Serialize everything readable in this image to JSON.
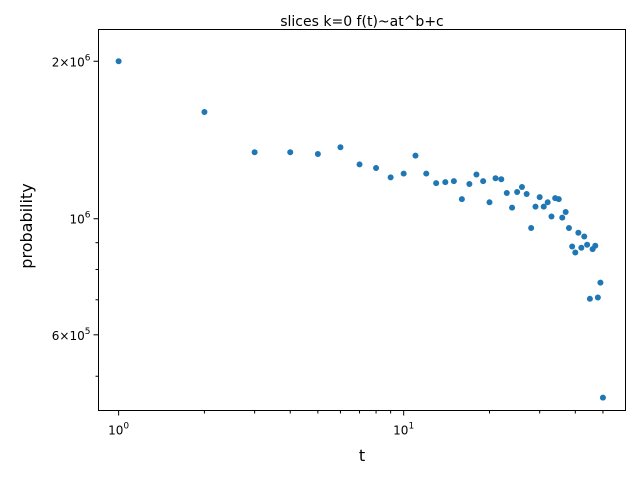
{
  "chart_data": {
    "type": "scatter",
    "title": "slices k=0 f(t)~at^b+c",
    "xlabel": "t",
    "ylabel": "probability",
    "xscale": "log",
    "yscale": "log",
    "xlim": [
      0.85,
      60
    ],
    "ylim": [
      430000,
      2300000
    ],
    "grid": false,
    "marker_color": "#1f77b4",
    "x_ticks": [
      {
        "value": 1,
        "label": "10",
        "exp": "0"
      },
      {
        "value": 10,
        "label": "10",
        "exp": "1"
      }
    ],
    "y_ticks": [
      {
        "value": 2000000,
        "label": "2×10",
        "exp": "6"
      },
      {
        "value": 1000000,
        "label": "10",
        "exp": "6"
      },
      {
        "value": 600000,
        "label": "6×10",
        "exp": "5"
      }
    ],
    "x_minor_ticks": [
      2,
      3,
      4,
      5,
      6,
      7,
      8,
      9,
      20,
      30,
      40,
      50
    ],
    "y_minor_ticks": [
      500000,
      700000,
      800000,
      900000
    ],
    "series": [
      {
        "x": [
          1,
          2,
          3,
          4,
          5,
          6,
          7,
          8,
          9,
          10,
          11,
          12,
          13,
          14,
          15,
          16,
          17,
          18,
          19,
          20,
          21,
          22,
          23,
          24,
          25,
          26,
          27,
          28,
          29,
          30,
          31,
          32,
          33,
          34,
          35,
          36,
          37,
          38,
          39,
          40,
          41,
          42,
          43,
          44,
          45,
          46,
          47,
          48,
          49,
          50
        ],
        "y": [
          2000000,
          1600000,
          1340000,
          1340000,
          1330000,
          1370000,
          1270000,
          1250000,
          1200000,
          1220000,
          1320000,
          1220000,
          1170000,
          1175000,
          1180000,
          1090000,
          1165000,
          1215000,
          1180000,
          1075000,
          1195000,
          1190000,
          1120000,
          1050000,
          1125000,
          1150000,
          1115000,
          960000,
          1055000,
          1100000,
          1055000,
          1075000,
          1010000,
          1095000,
          1090000,
          1005000,
          1030000,
          960000,
          885000,
          862000,
          940000,
          880000,
          925000,
          892000,
          703000,
          875000,
          888000,
          707000,
          755000,
          455000
        ]
      }
    ]
  }
}
